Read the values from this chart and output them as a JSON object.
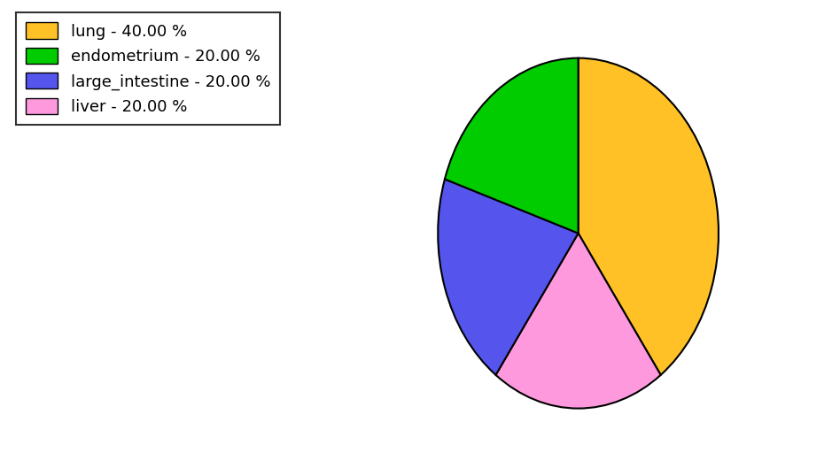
{
  "labels": [
    "lung",
    "liver",
    "large_intestine",
    "endometrium"
  ],
  "values": [
    40.0,
    20.0,
    20.0,
    20.0
  ],
  "colors": [
    "#FFC125",
    "#FF99DD",
    "#5555EE",
    "#00CC00"
  ],
  "legend_labels": [
    "lung - 40.00 %",
    "endometrium - 20.00 %",
    "large_intestine - 20.00 %",
    "liver - 20.00 %"
  ],
  "legend_colors": [
    "#FFC125",
    "#00CC00",
    "#5555EE",
    "#FF99DD"
  ],
  "startangle": 90,
  "figsize": [
    9.39,
    5.38
  ],
  "dpi": 100,
  "background_color": "#ffffff",
  "legend_fontsize": 13,
  "edgecolor": "#000000",
  "linewidth": 1.5
}
